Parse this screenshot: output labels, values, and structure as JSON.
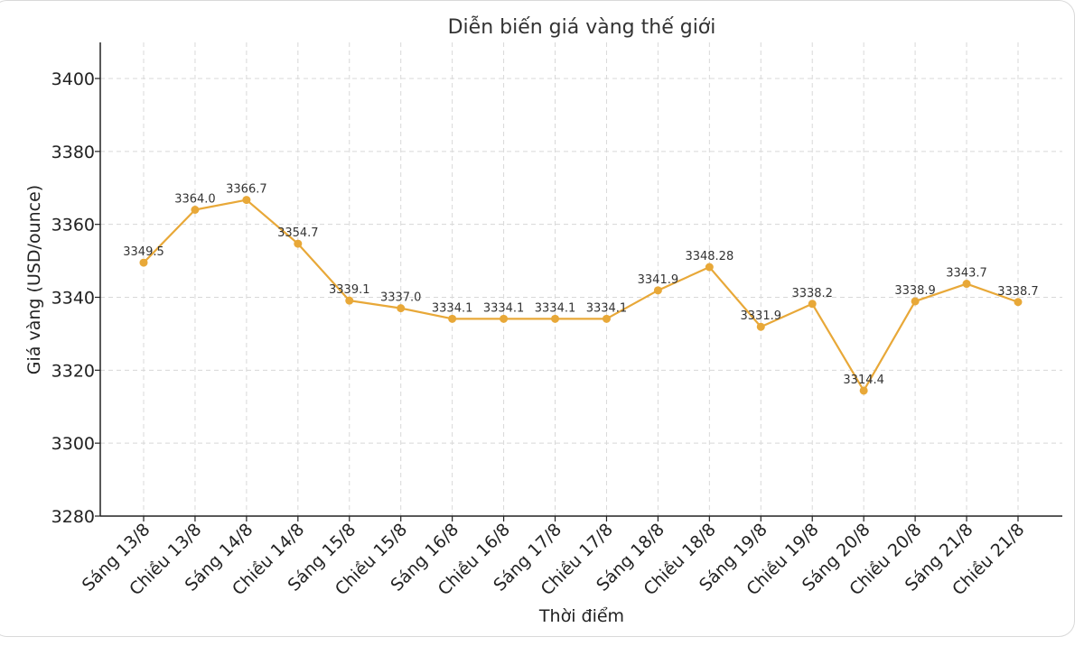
{
  "chart_data": {
    "type": "line",
    "title": "Diễn biến giá vàng thế giới",
    "xlabel": "Thời điểm",
    "ylabel": "Giá vàng (USD/ounce)",
    "ylim": [
      3280,
      3410
    ],
    "yticks": [
      3280,
      3300,
      3320,
      3340,
      3360,
      3380,
      3400
    ],
    "grid": true,
    "categories": [
      "Sáng 13/8",
      "Chiều 13/8",
      "Sáng 14/8",
      "Chiều 14/8",
      "Sáng 15/8",
      "Chiều 15/8",
      "Sáng 16/8",
      "Chiều 16/8",
      "Sáng 17/8",
      "Chiều 17/8",
      "Sáng 18/8",
      "Chiều 18/8",
      "Sáng 19/8",
      "Chiều 19/8",
      "Sáng 20/8",
      "Chiều 20/8",
      "Sáng 21/8",
      "Chiều 21/8"
    ],
    "series": [
      {
        "values": [
          3349.5,
          3364.0,
          3366.7,
          3354.7,
          3339.1,
          3337.0,
          3334.1,
          3334.1,
          3334.1,
          3334.1,
          3341.9,
          3348.28,
          3331.9,
          3338.2,
          3314.4,
          3338.9,
          3343.7,
          3338.7
        ],
        "labels": [
          "3349.5",
          "3364.0",
          "3366.7",
          "3354.7",
          "3339.1",
          "3337.0",
          "3334.1",
          "3334.1",
          "3334.1",
          "3334.1",
          "3341.9",
          "3348.28",
          "3331.9",
          "3338.2",
          "3314.4",
          "3338.9",
          "3343.7",
          "3338.7"
        ],
        "color": "#E8A838"
      }
    ]
  }
}
